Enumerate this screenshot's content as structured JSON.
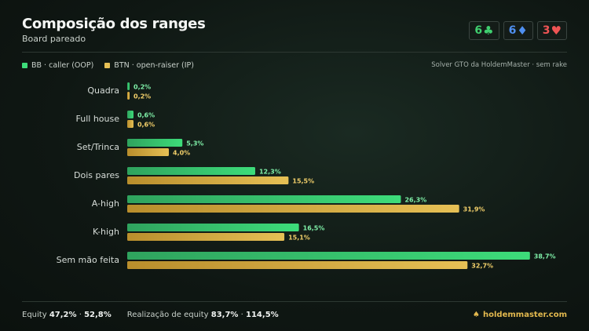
{
  "header": {
    "title": "Composição dos ranges",
    "subtitle": "Board pareado",
    "cards": [
      {
        "rank": "6",
        "suit": "♣",
        "color": "#3fcf6f"
      },
      {
        "rank": "6",
        "suit": "♦",
        "color": "#4f8ff0"
      },
      {
        "rank": "3",
        "suit": "♥",
        "color": "#ef5454"
      }
    ]
  },
  "legend": {
    "bb": "BB · caller (OOP)",
    "btn": "BTN · open-raiser (IP)",
    "source": "Solver GTO da HoldemMaster · sem rake"
  },
  "colors": {
    "bb": "#3ddc7a",
    "btn": "#e6c055",
    "bb_label": "#7ff0a8",
    "btn_label": "#f2cf6a"
  },
  "chart_data": {
    "type": "bar",
    "orientation": "horizontal",
    "categories": [
      "Quadra",
      "Full house",
      "Set/Trinca",
      "Dois pares",
      "A-high",
      "K-high",
      "Sem mão feita"
    ],
    "series": [
      {
        "name": "BB · caller (OOP)",
        "values": [
          0.2,
          0.6,
          5.3,
          12.3,
          26.3,
          16.5,
          38.7
        ],
        "labels": [
          "0,2%",
          "0,6%",
          "5,3%",
          "12,3%",
          "26,3%",
          "16,5%",
          "38,7%"
        ]
      },
      {
        "name": "BTN · open-raiser (IP)",
        "values": [
          0.2,
          0.6,
          4.0,
          15.5,
          31.9,
          15.1,
          32.7
        ],
        "labels": [
          "0,2%",
          "0,6%",
          "4,0%",
          "15,5%",
          "31,9%",
          "15,1%",
          "32,7%"
        ]
      }
    ],
    "xlim": [
      0,
      40
    ],
    "grid": false,
    "legend_position": "top-left"
  },
  "footer": {
    "equity_label": "Equity",
    "equity_bb": "47,2%",
    "equity_sep": "·",
    "equity_btn": "52,8%",
    "realization_label": "Realização de equity",
    "realization_bb": "83,7%",
    "realization_sep": "·",
    "realization_btn": "114,5%",
    "brand": "holdemmaster.com",
    "brand_icon": "spade-icon"
  }
}
